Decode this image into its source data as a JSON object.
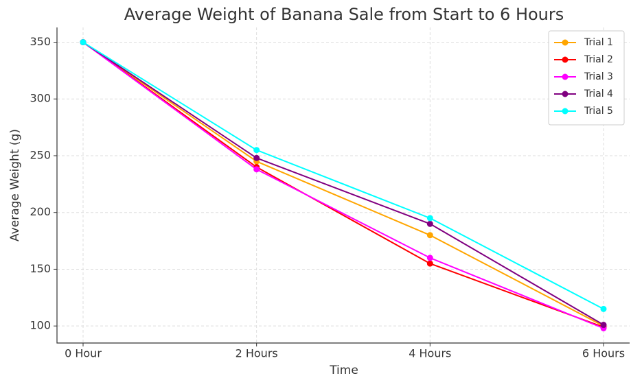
{
  "chart_data": {
    "type": "line",
    "title": "Average Weight of Banana Sale from Start to 6 Hours",
    "x_label": "Time",
    "y_label": "Average Weight (g)",
    "categories": [
      "0 Hour",
      "2 Hours",
      "4 Hours",
      "6 Hours"
    ],
    "series": [
      {
        "name": "Trial 1",
        "color": "#ffa500",
        "values": [
          350,
          245,
          180,
          100
        ]
      },
      {
        "name": "Trial 2",
        "color": "#ff0000",
        "values": [
          350,
          240,
          155,
          99
        ]
      },
      {
        "name": "Trial 3",
        "color": "#ff00ff",
        "values": [
          350,
          238,
          160,
          98
        ]
      },
      {
        "name": "Trial 4",
        "color": "#800080",
        "values": [
          350,
          248,
          190,
          101
        ]
      },
      {
        "name": "Trial 5",
        "color": "#00ffff",
        "values": [
          350,
          255,
          195,
          115
        ]
      }
    ],
    "ylim": [
      85,
      363
    ],
    "yticks": [
      100,
      150,
      200,
      250,
      300,
      350
    ],
    "grid": true,
    "legend": "upper right"
  }
}
